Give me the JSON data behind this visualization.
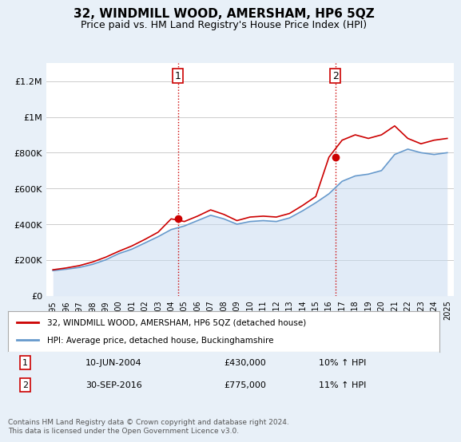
{
  "title": "32, WINDMILL WOOD, AMERSHAM, HP6 5QZ",
  "subtitle": "Price paid vs. HM Land Registry's House Price Index (HPI)",
  "ylabel_ticks": [
    "£0",
    "£200K",
    "£400K",
    "£600K",
    "£800K",
    "£1M",
    "£1.2M"
  ],
  "ytick_values": [
    0,
    200000,
    400000,
    600000,
    800000,
    1000000,
    1200000
  ],
  "ylim": [
    0,
    1300000
  ],
  "sale1_date_idx": 9.5,
  "sale1_price": 430000,
  "sale1_label": "1",
  "sale1_date_str": "10-JUN-2004",
  "sale1_amount_str": "£430,000",
  "sale1_pct_str": "10% ↑ HPI",
  "sale2_date_idx": 21.5,
  "sale2_price": 775000,
  "sale2_label": "2",
  "sale2_date_str": "30-SEP-2016",
  "sale2_amount_str": "£775,000",
  "sale2_pct_str": "11% ↑ HPI",
  "legend_line1": "32, WINDMILL WOOD, AMERSHAM, HP6 5QZ (detached house)",
  "legend_line2": "HPI: Average price, detached house, Buckinghamshire",
  "footer": "Contains HM Land Registry data © Crown copyright and database right 2024.\nThis data is licensed under the Open Government Licence v3.0.",
  "line_color_red": "#cc0000",
  "line_color_blue": "#6699cc",
  "fill_color_blue": "#c5d9f0",
  "vline_color": "#cc0000",
  "bg_color": "#e8f0f8",
  "plot_bg_color": "#ffffff",
  "x_years": [
    "1995",
    "1996",
    "1997",
    "1998",
    "1999",
    "2000",
    "2001",
    "2002",
    "2003",
    "2004",
    "2005",
    "2006",
    "2007",
    "2008",
    "2009",
    "2010",
    "2011",
    "2012",
    "2013",
    "2014",
    "2015",
    "2016",
    "2017",
    "2018",
    "2019",
    "2020",
    "2021",
    "2022",
    "2023",
    "2024",
    "2025"
  ],
  "hpi_values": [
    140000,
    148000,
    158000,
    175000,
    200000,
    235000,
    260000,
    295000,
    330000,
    370000,
    390000,
    420000,
    450000,
    430000,
    400000,
    415000,
    420000,
    415000,
    435000,
    475000,
    520000,
    570000,
    640000,
    670000,
    680000,
    700000,
    790000,
    820000,
    800000,
    790000,
    800000
  ],
  "red_values": [
    145000,
    155000,
    168000,
    188000,
    215000,
    248000,
    278000,
    315000,
    355000,
    430000,
    415000,
    445000,
    480000,
    455000,
    420000,
    440000,
    445000,
    440000,
    460000,
    505000,
    555000,
    775000,
    870000,
    900000,
    880000,
    900000,
    950000,
    880000,
    850000,
    870000,
    880000
  ]
}
